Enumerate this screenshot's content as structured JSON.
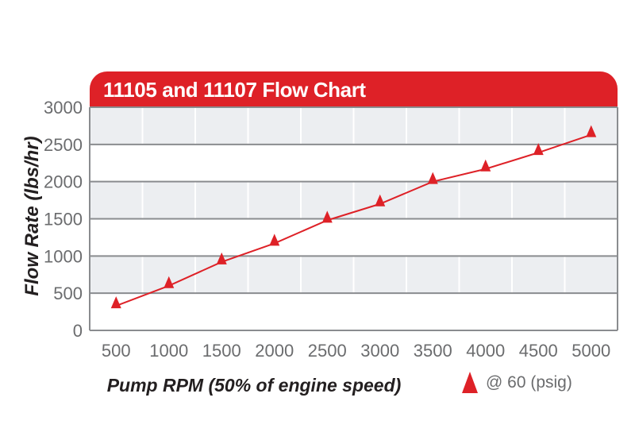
{
  "header": {
    "title": "11105 and 11107 Flow Chart",
    "background": "#de2127",
    "text_color": "#ffffff"
  },
  "chart_data": {
    "type": "line",
    "title": "11105 and 11107 Flow Chart",
    "xlabel": "Pump RPM (50% of engine speed)",
    "ylabel": "Flow Rate (lbs/hr)",
    "x": [
      500,
      1000,
      1500,
      2000,
      2500,
      3000,
      3500,
      4000,
      4500,
      5000
    ],
    "series": [
      {
        "name": "@ 60 (psig)",
        "marker": "triangle",
        "color": "#de2127",
        "values": [
          330,
          600,
          920,
          1170,
          1480,
          1700,
          2000,
          2170,
          2390,
          2630
        ]
      }
    ],
    "ylim": [
      0,
      3000
    ],
    "yticks": [
      3000,
      2500,
      2000,
      1500,
      1000,
      500,
      0
    ],
    "grid": {
      "h_line_color": "#8a8c8f",
      "v_line_color": "#ffffff",
      "band_fill": "#eceef1",
      "band_alt_fill": "#ffffff"
    },
    "tick_label_color": "#6b6c6e",
    "axis_title_color": "#231f20",
    "legend_position": "bottom-right"
  },
  "legend": {
    "label": "@ 60 (psig)",
    "marker": "triangle-icon",
    "marker_color": "#de2127"
  }
}
